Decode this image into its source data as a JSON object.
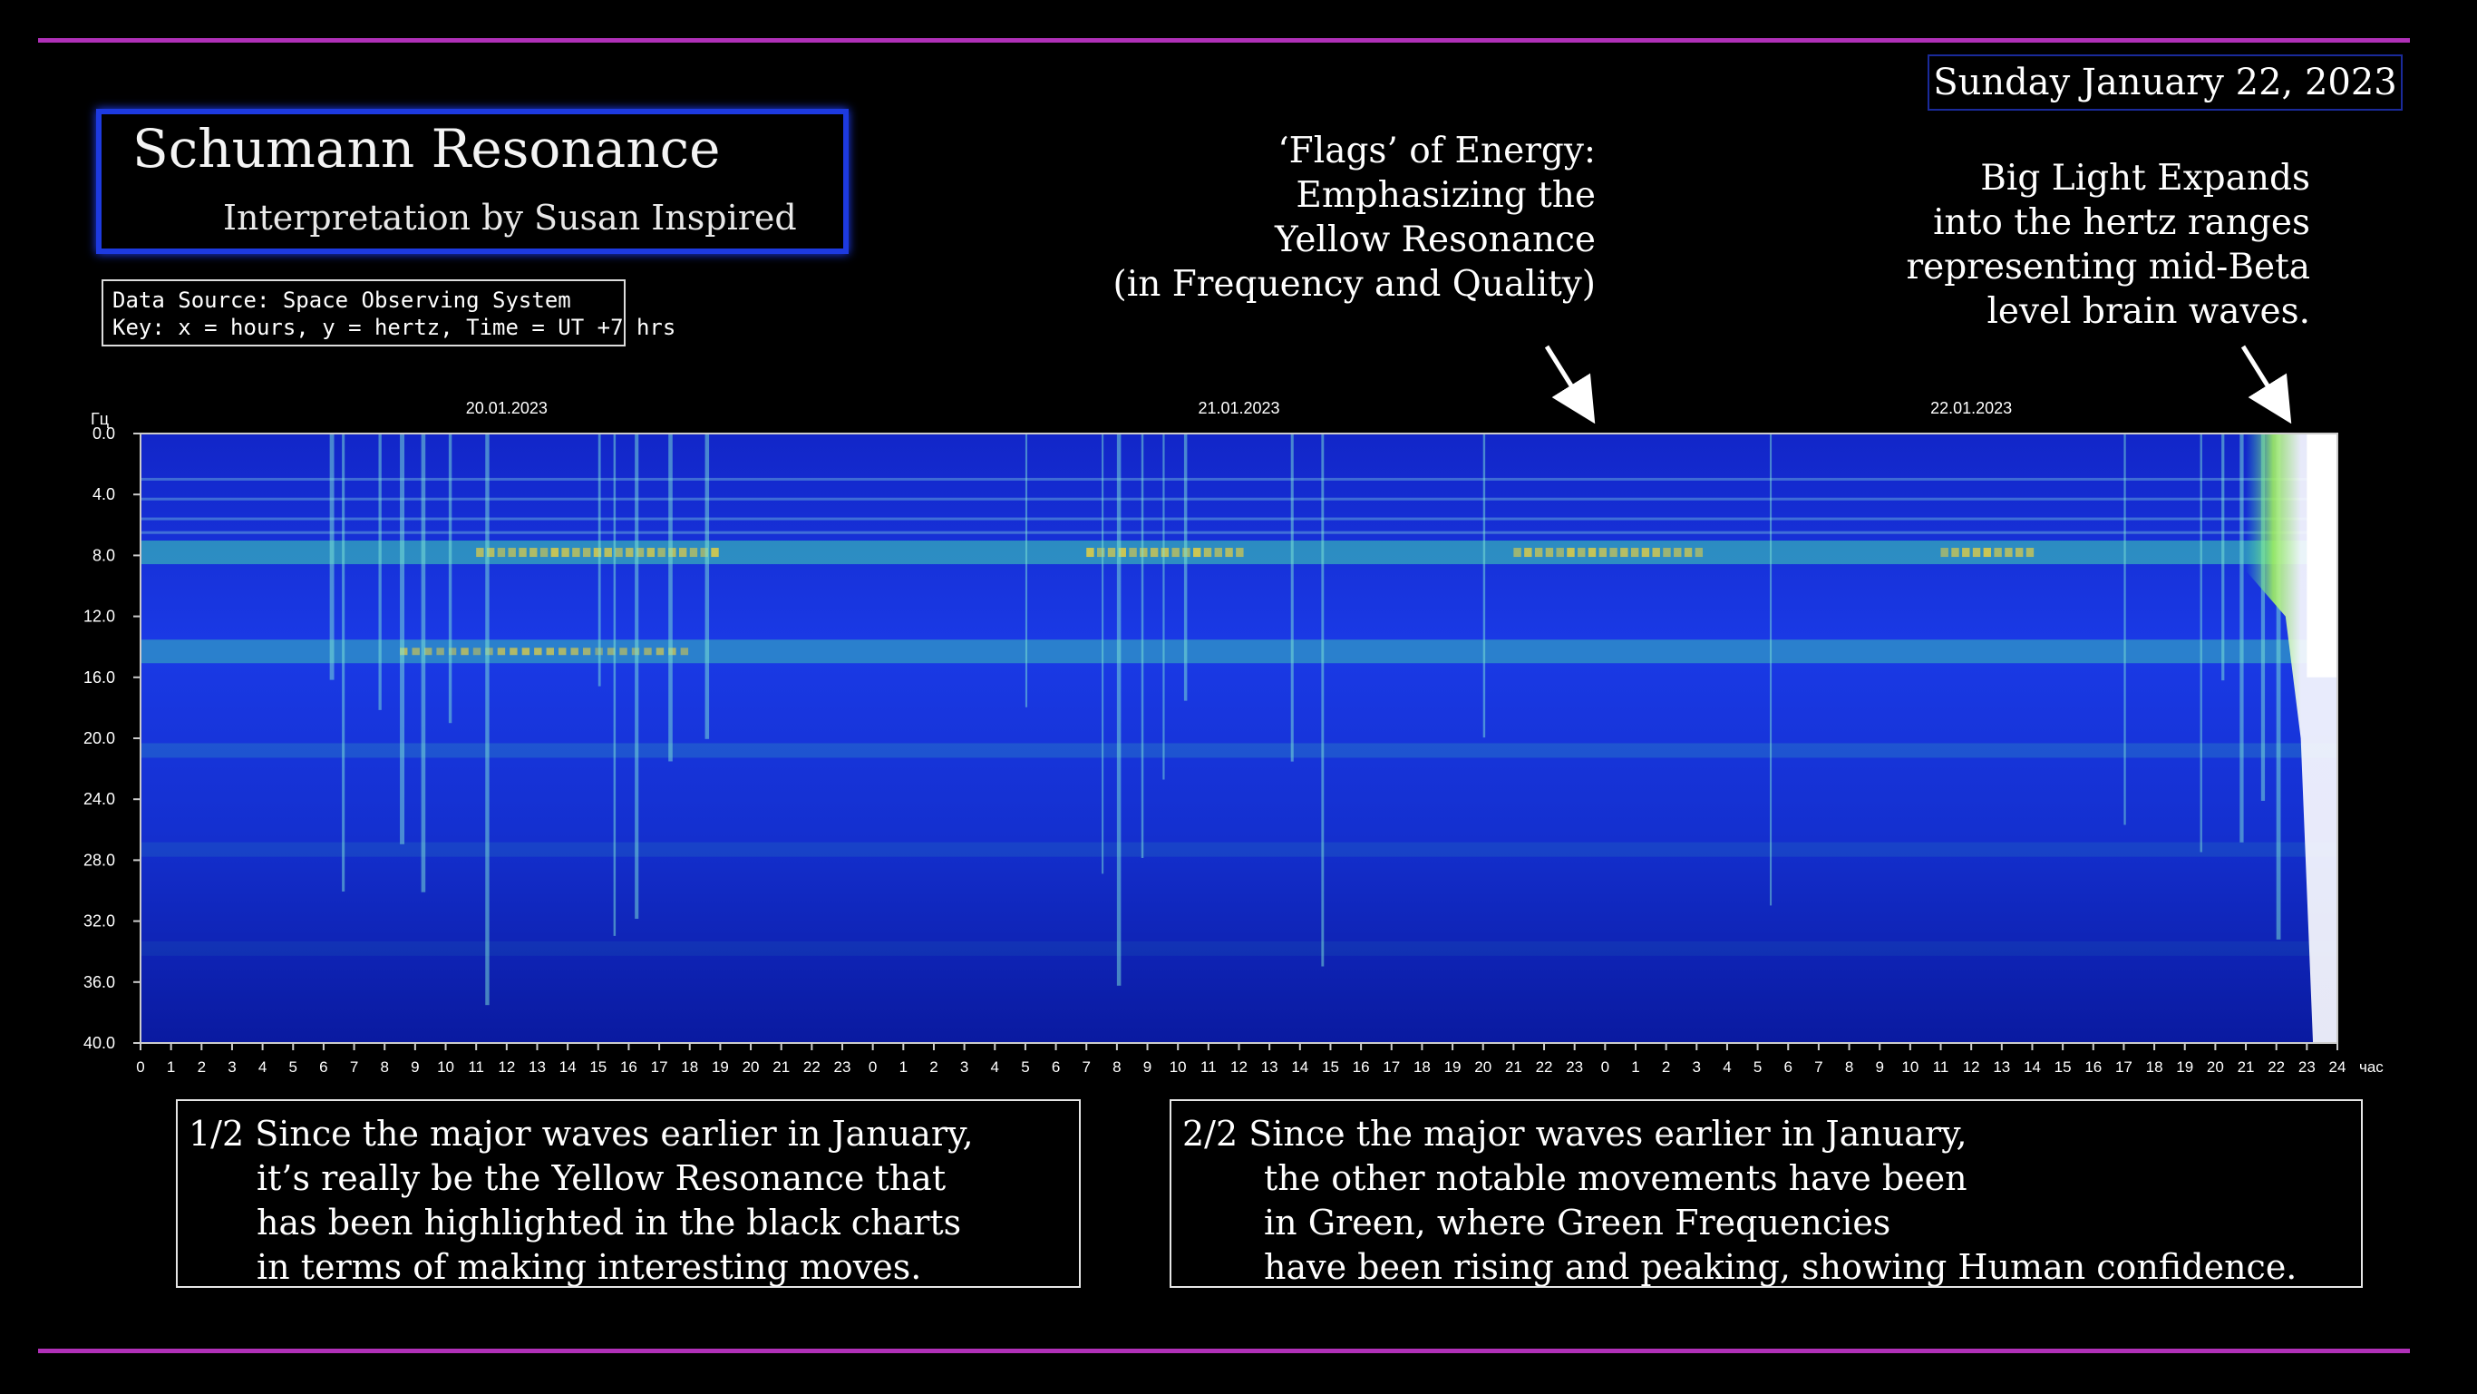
{
  "header": {
    "date": "Sunday January 22, 2023",
    "title": "Schumann Resonance",
    "subtitle": "Interpretation by Susan Inspired",
    "source_lines": [
      "Data Source: Space Observing System",
      "Key: x = hours, y = hertz, Time = UT +7 hrs"
    ]
  },
  "annotations": {
    "flags": [
      "‘Flags’ of Energy:",
      "Emphasizing the",
      "Yellow Resonance",
      "(in Frequency and Quality)"
    ],
    "big_light": [
      "Big Light Expands",
      "into the hertz ranges",
      "representing mid-Beta",
      "level brain waves."
    ]
  },
  "notes": {
    "left": [
      "1/2 Since the major waves earlier in January,",
      "it’s really be the Yellow Resonance that",
      "has been highlighted in the black charts",
      "in terms of making interesting moves."
    ],
    "right": [
      "2/2 Since the major waves earlier in January,",
      "the other notable  movements have been",
      "in Green, where Green Frequencies",
      "have been rising and peaking, showing Human confidence."
    ]
  },
  "colors": {
    "rule": "#b030b8",
    "title_border": "#1d3ae0",
    "date_border": "#1a2a9a",
    "spectrogram_base": "#1530d8",
    "spectrogram_dark": "#0a1890",
    "green_band": "#3fd8b0",
    "yellow_band": "#e8d040",
    "white_peak": "#ffffff"
  },
  "chart_data": {
    "type": "heatmap",
    "ylabel": "Гц",
    "xunit": "час",
    "dates": [
      "20.01.2023",
      "21.01.2023",
      "22.01.2023"
    ],
    "yticks": [
      "0.0",
      "4.0",
      "8.0",
      "12.0",
      "16.0",
      "20.0",
      "24.0",
      "28.0",
      "32.0",
      "36.0",
      "40.0"
    ],
    "ylim": [
      0,
      40
    ],
    "xticks": [
      "0",
      "1",
      "2",
      "3",
      "4",
      "5",
      "6",
      "7",
      "8",
      "9",
      "10",
      "11",
      "12",
      "13",
      "14",
      "15",
      "16",
      "17",
      "18",
      "19",
      "20",
      "21",
      "22",
      "23",
      "0",
      "1",
      "2",
      "3",
      "4",
      "5",
      "6",
      "7",
      "8",
      "9",
      "10",
      "11",
      "12",
      "13",
      "14",
      "15",
      "16",
      "17",
      "18",
      "19",
      "20",
      "21",
      "22",
      "23",
      "0",
      "1",
      "2",
      "3",
      "4",
      "5",
      "6",
      "7",
      "8",
      "9",
      "10",
      "11",
      "12",
      "13",
      "14",
      "15",
      "16",
      "17",
      "18",
      "19",
      "20",
      "21",
      "22",
      "23",
      "24"
    ],
    "xlim_hours": [
      0,
      72
    ],
    "resonance_bands_hz": [
      {
        "name": "",
        "hz": 7.8
      },
      {
        "name": "",
        "hz": 14.3
      },
      {
        "name": "",
        "hz": 20.8
      },
      {
        "name": "",
        "hz": 27.3
      },
      {
        "name": "",
        "hz": 33.8
      }
    ],
    "bright_columns_hours": [
      6.2,
      6.6,
      7.8,
      8.5,
      9.2,
      10.1,
      11.3,
      15.0,
      15.5,
      16.2,
      17.3,
      18.5,
      29.0,
      31.5,
      32.0,
      32.8,
      33.5,
      34.2,
      37.7,
      38.7,
      44.0,
      53.4,
      65.0,
      67.5,
      68.2,
      68.8,
      69.5,
      70.0
    ],
    "white_peak_start_hours": 70.5
  }
}
